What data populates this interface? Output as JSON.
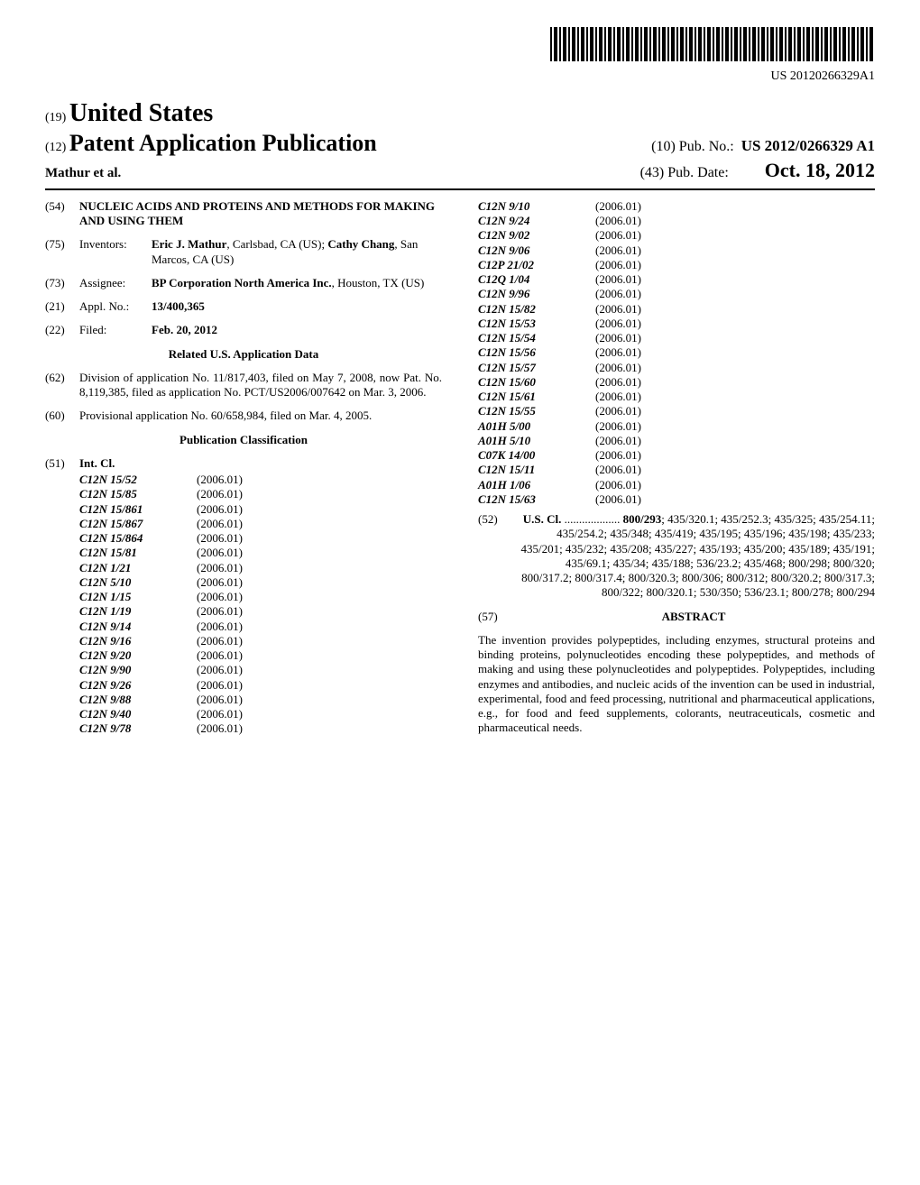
{
  "barcode_label": "US 20120266329A1",
  "header": {
    "jurisdiction_prefix": "(19)",
    "jurisdiction": "United States",
    "doc_type_prefix": "(12)",
    "doc_type": "Patent Application Publication",
    "authors": "Mathur et al.",
    "pubno_prefix": "(10)",
    "pubno_label": "Pub. No.:",
    "pubno": "US 2012/0266329 A1",
    "pubdate_prefix": "(43)",
    "pubdate_label": "Pub. Date:",
    "pubdate": "Oct. 18, 2012"
  },
  "title_num": "(54)",
  "title": "NUCLEIC ACIDS AND PROTEINS AND METHODS FOR MAKING AND USING THEM",
  "inventors_num": "(75)",
  "inventors_label": "Inventors:",
  "inventors": "Eric J. Mathur, Carlsbad, CA (US); Cathy Chang, San Marcos, CA (US)",
  "assignee_num": "(73)",
  "assignee_label": "Assignee:",
  "assignee": "BP Corporation North America Inc., Houston, TX (US)",
  "applno_num": "(21)",
  "applno_label": "Appl. No.:",
  "applno": "13/400,365",
  "filed_num": "(22)",
  "filed_label": "Filed:",
  "filed": "Feb. 20, 2012",
  "related_title": "Related U.S. Application Data",
  "division_num": "(62)",
  "division": "Division of application No. 11/817,403, filed on May 7, 2008, now Pat. No. 8,119,385, filed as application No. PCT/US2006/007642 on Mar. 3, 2006.",
  "provisional_num": "(60)",
  "provisional": "Provisional application No. 60/658,984, filed on Mar. 4, 2005.",
  "pubclass_title": "Publication Classification",
  "intcl_num": "(51)",
  "intcl_label": "Int. Cl.",
  "intcl_left": [
    {
      "code": "C12N 15/52",
      "ver": "(2006.01)"
    },
    {
      "code": "C12N 15/85",
      "ver": "(2006.01)"
    },
    {
      "code": "C12N 15/861",
      "ver": "(2006.01)"
    },
    {
      "code": "C12N 15/867",
      "ver": "(2006.01)"
    },
    {
      "code": "C12N 15/864",
      "ver": "(2006.01)"
    },
    {
      "code": "C12N 15/81",
      "ver": "(2006.01)"
    },
    {
      "code": "C12N 1/21",
      "ver": "(2006.01)"
    },
    {
      "code": "C12N 5/10",
      "ver": "(2006.01)"
    },
    {
      "code": "C12N 1/15",
      "ver": "(2006.01)"
    },
    {
      "code": "C12N 1/19",
      "ver": "(2006.01)"
    },
    {
      "code": "C12N 9/14",
      "ver": "(2006.01)"
    },
    {
      "code": "C12N 9/16",
      "ver": "(2006.01)"
    },
    {
      "code": "C12N 9/20",
      "ver": "(2006.01)"
    },
    {
      "code": "C12N 9/90",
      "ver": "(2006.01)"
    },
    {
      "code": "C12N 9/26",
      "ver": "(2006.01)"
    },
    {
      "code": "C12N 9/88",
      "ver": "(2006.01)"
    },
    {
      "code": "C12N 9/40",
      "ver": "(2006.01)"
    },
    {
      "code": "C12N 9/78",
      "ver": "(2006.01)"
    }
  ],
  "intcl_right": [
    {
      "code": "C12N 9/10",
      "ver": "(2006.01)"
    },
    {
      "code": "C12N 9/24",
      "ver": "(2006.01)"
    },
    {
      "code": "C12N 9/02",
      "ver": "(2006.01)"
    },
    {
      "code": "C12N 9/06",
      "ver": "(2006.01)"
    },
    {
      "code": "C12P 21/02",
      "ver": "(2006.01)"
    },
    {
      "code": "C12Q 1/04",
      "ver": "(2006.01)"
    },
    {
      "code": "C12N 9/96",
      "ver": "(2006.01)"
    },
    {
      "code": "C12N 15/82",
      "ver": "(2006.01)"
    },
    {
      "code": "C12N 15/53",
      "ver": "(2006.01)"
    },
    {
      "code": "C12N 15/54",
      "ver": "(2006.01)"
    },
    {
      "code": "C12N 15/56",
      "ver": "(2006.01)"
    },
    {
      "code": "C12N 15/57",
      "ver": "(2006.01)"
    },
    {
      "code": "C12N 15/60",
      "ver": "(2006.01)"
    },
    {
      "code": "C12N 15/61",
      "ver": "(2006.01)"
    },
    {
      "code": "C12N 15/55",
      "ver": "(2006.01)"
    },
    {
      "code": "A01H 5/00",
      "ver": "(2006.01)"
    },
    {
      "code": "A01H 5/10",
      "ver": "(2006.01)"
    },
    {
      "code": "C07K 14/00",
      "ver": "(2006.01)"
    },
    {
      "code": "C12N 15/11",
      "ver": "(2006.01)"
    },
    {
      "code": "A01H 1/06",
      "ver": "(2006.01)"
    },
    {
      "code": "C12N 15/63",
      "ver": "(2006.01)"
    }
  ],
  "uscl_num": "(52)",
  "uscl_label": "U.S. Cl.",
  "uscl_dots": " ................... ",
  "uscl_first_bold": "800/293",
  "uscl_rest": "; 435/320.1; 435/252.3; 435/325; 435/254.11; 435/254.2; 435/348; 435/419; 435/195; 435/196; 435/198; 435/233; 435/201; 435/232; 435/208; 435/227; 435/193; 435/200; 435/189; 435/191; 435/69.1; 435/34; 435/188; 536/23.2; 435/468; 800/298; 800/320; 800/317.2; 800/317.4; 800/320.3; 800/306; 800/312; 800/320.2; 800/317.3; 800/322; 800/320.1; 530/350; 536/23.1; 800/278; 800/294",
  "abstract_num": "(57)",
  "abstract_label": "ABSTRACT",
  "abstract": "The invention provides polypeptides, including enzymes, structural proteins and binding proteins, polynucleotides encoding these polypeptides, and methods of making and using these polynucleotides and polypeptides. Polypeptides, including enzymes and antibodies, and nucleic acids of the invention can be used in industrial, experimental, food and feed processing, nutritional and pharmaceutical applications, e.g., for food and feed supplements, colorants, neutraceuticals, cosmetic and pharmaceutical needs."
}
